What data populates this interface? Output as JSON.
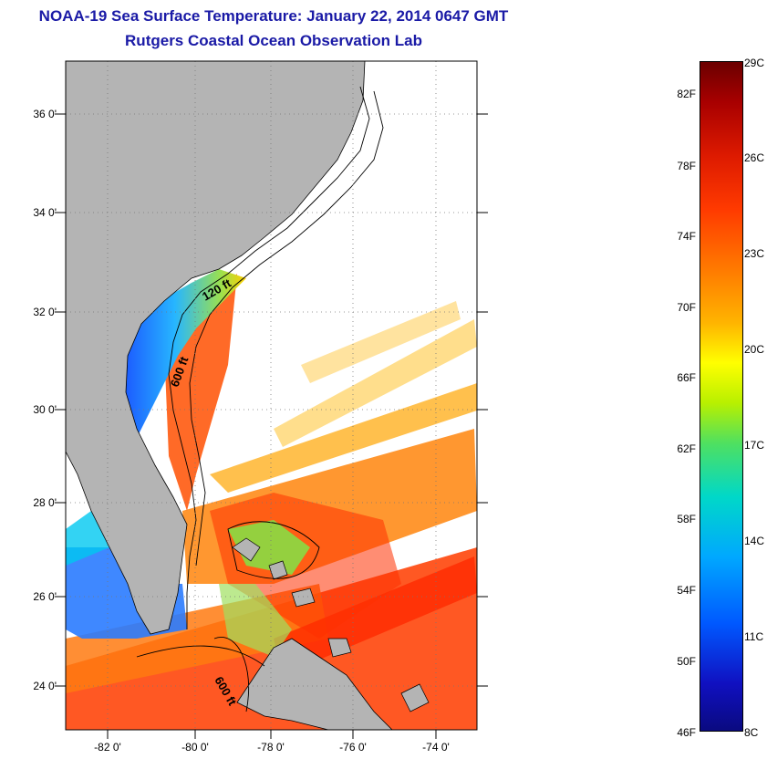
{
  "header": {
    "title": "NOAA-19 Sea Surface Temperature:  January 22, 2014 0647 GMT",
    "subtitle": "Rutgers Coastal Ocean Observation Lab"
  },
  "map": {
    "lat_ticks": [
      "36 0'",
      "34 0'",
      "32 0'",
      "30 0'",
      "28 0'",
      "26 0'",
      "24 0'"
    ],
    "lon_ticks": [
      "-82 0'",
      "-80 0'",
      "-78 0'",
      "-76 0'",
      "-74 0'"
    ],
    "contour_labels": [
      "120 ft",
      "600 ft",
      "600 ft"
    ],
    "land_color": "#b4b4b4",
    "nodata_color": "#ffffff"
  },
  "colorbar": {
    "fahrenheit_labels": [
      "82F",
      "78F",
      "74F",
      "70F",
      "66F",
      "62F",
      "58F",
      "54F",
      "50F",
      "46F"
    ],
    "celsius_labels": [
      "29C",
      "26C",
      "23C",
      "20C",
      "17C",
      "14C",
      "11C",
      "8C"
    ],
    "colors": [
      "#6b0000",
      "#dd1a00",
      "#ff7a00",
      "#ffff00",
      "#4fe060",
      "#00d8c8",
      "#0058ff",
      "#0a0a80"
    ]
  }
}
